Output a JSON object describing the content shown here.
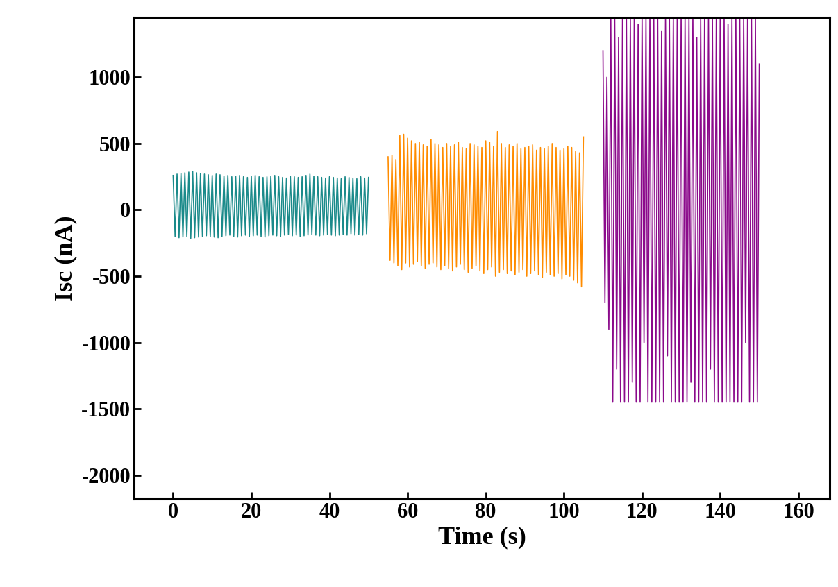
{
  "chart_data": {
    "type": "line",
    "xlabel": "Time (s)",
    "ylabel": "Isc (nA)",
    "xlim": [
      -10,
      168
    ],
    "ylim": [
      -2180,
      1450
    ],
    "xticks": [
      0,
      20,
      40,
      60,
      80,
      100,
      120,
      140,
      160
    ],
    "yticks": [
      -2000,
      -1500,
      -1000,
      -500,
      0,
      500,
      1000
    ],
    "series": [
      {
        "color": "#1a8a8a",
        "x": [
          0,
          0.5,
          1,
          1.5,
          2,
          2.5,
          3,
          3.5,
          4,
          4.5,
          5,
          5.5,
          6,
          6.5,
          7,
          7.5,
          8,
          8.5,
          9,
          9.5,
          10,
          10.5,
          11,
          11.5,
          12,
          12.5,
          13,
          13.5,
          14,
          14.5,
          15,
          15.5,
          16,
          16.5,
          17,
          17.5,
          18,
          18.5,
          19,
          19.5,
          20,
          20.5,
          21,
          21.5,
          22,
          22.5,
          23,
          23.5,
          24,
          24.5,
          25,
          25.5,
          26,
          26.5,
          27,
          27.5,
          28,
          28.5,
          29,
          29.5,
          30,
          30.5,
          31,
          31.5,
          32,
          32.5,
          33,
          33.5,
          34,
          34.5,
          35,
          35.5,
          36,
          36.5,
          37,
          37.5,
          38,
          38.5,
          39,
          39.5,
          40,
          40.5,
          41,
          41.5,
          42,
          42.5,
          43,
          43.5,
          44,
          44.5,
          45,
          45.5,
          46,
          46.5,
          47,
          47.5,
          48,
          48.5,
          49,
          49.5,
          50
        ],
        "values": [
          260,
          -200,
          270,
          -210,
          275,
          -205,
          280,
          -200,
          285,
          -215,
          290,
          -210,
          280,
          -205,
          275,
          -200,
          270,
          -195,
          265,
          -200,
          260,
          -205,
          270,
          -210,
          265,
          -200,
          255,
          -195,
          260,
          -190,
          250,
          -200,
          255,
          -205,
          260,
          -195,
          250,
          -190,
          245,
          -200,
          255,
          -195,
          260,
          -190,
          250,
          -200,
          245,
          -205,
          250,
          -195,
          255,
          -190,
          260,
          -195,
          250,
          -200,
          245,
          -190,
          240,
          -185,
          255,
          -195,
          250,
          -190,
          245,
          -200,
          250,
          -195,
          260,
          -190,
          270,
          -185,
          255,
          -190,
          250,
          -195,
          245,
          -190,
          240,
          -185,
          250,
          -190,
          245,
          -195,
          240,
          -190,
          235,
          -185,
          250,
          -190,
          245,
          -180,
          240,
          -190,
          235,
          -185,
          250,
          -190,
          240,
          -180,
          245
        ]
      },
      {
        "color": "#ff8c00",
        "x": [
          55,
          55.5,
          56,
          56.5,
          57,
          57.5,
          58,
          58.5,
          59,
          59.5,
          60,
          60.5,
          61,
          61.5,
          62,
          62.5,
          63,
          63.5,
          64,
          64.5,
          65,
          65.5,
          66,
          66.5,
          67,
          67.5,
          68,
          68.5,
          69,
          69.5,
          70,
          70.5,
          71,
          71.5,
          72,
          72.5,
          73,
          73.5,
          74,
          74.5,
          75,
          75.5,
          76,
          76.5,
          77,
          77.5,
          78,
          78.5,
          79,
          79.5,
          80,
          80.5,
          81,
          81.5,
          82,
          82.5,
          83,
          83.5,
          84,
          84.5,
          85,
          85.5,
          86,
          86.5,
          87,
          87.5,
          88,
          88.5,
          89,
          89.5,
          90,
          90.5,
          91,
          91.5,
          92,
          92.5,
          93,
          93.5,
          94,
          94.5,
          95,
          95.5,
          96,
          96.5,
          97,
          97.5,
          98,
          98.5,
          99,
          99.5,
          100,
          100.5,
          101,
          101.5,
          102,
          102.5,
          103,
          103.5,
          104,
          104.5,
          105
        ],
        "values": [
          400,
          -380,
          410,
          -400,
          380,
          -420,
          560,
          -450,
          570,
          -400,
          540,
          -430,
          520,
          -410,
          500,
          -390,
          510,
          -420,
          490,
          -440,
          480,
          -410,
          530,
          -400,
          500,
          -430,
          490,
          -450,
          470,
          -420,
          500,
          -440,
          480,
          -460,
          490,
          -430,
          510,
          -410,
          470,
          -450,
          460,
          -470,
          500,
          -440,
          490,
          -420,
          480,
          -460,
          470,
          -480,
          520,
          -450,
          510,
          -430,
          480,
          -500,
          590,
          -470,
          500,
          -450,
          470,
          -480,
          490,
          -460,
          480,
          -490,
          500,
          -470,
          460,
          -450,
          470,
          -500,
          480,
          -480,
          490,
          -460,
          450,
          -490,
          470,
          -510,
          460,
          -470,
          480,
          -490,
          500,
          -500,
          470,
          -480,
          450,
          -520,
          460,
          -490,
          480,
          -500,
          470,
          -530,
          440,
          -550,
          430,
          -580,
          550
        ]
      },
      {
        "color": "#8b0a8b",
        "x": [
          110,
          110.5,
          111,
          111.5,
          112,
          112.5,
          113,
          113.5,
          114,
          114.5,
          115,
          115.5,
          116,
          116.5,
          117,
          117.5,
          118,
          118.5,
          119,
          119.5,
          120,
          120.5,
          121,
          121.5,
          122,
          122.5,
          123,
          123.5,
          124,
          124.5,
          125,
          125.5,
          126,
          126.5,
          127,
          127.5,
          128,
          128.5,
          129,
          129.5,
          130,
          130.5,
          131,
          131.5,
          132,
          132.5,
          133,
          133.5,
          134,
          134.5,
          135,
          135.5,
          136,
          136.5,
          137,
          137.5,
          138,
          138.5,
          139,
          139.5,
          140,
          140.5,
          141,
          141.5,
          142,
          142.5,
          143,
          143.5,
          144,
          144.5,
          145,
          145.5,
          146,
          146.5,
          147,
          147.5,
          148,
          148.5,
          149,
          149.5,
          150
        ],
        "values": [
          1200,
          -700,
          1000,
          -900,
          1450,
          -1450,
          1450,
          -1200,
          1300,
          -1450,
          1450,
          -1450,
          1450,
          -1450,
          1450,
          -1300,
          1450,
          -1450,
          1400,
          -1450,
          1450,
          -1000,
          1450,
          -1450,
          1450,
          -1450,
          1450,
          -1450,
          1450,
          -1450,
          1350,
          -1450,
          1450,
          -1100,
          1450,
          -1450,
          1450,
          -1450,
          1450,
          -1450,
          1450,
          -1450,
          1450,
          -1450,
          1450,
          -1300,
          1450,
          -1450,
          1300,
          -1450,
          1450,
          -1450,
          1450,
          -1450,
          1450,
          -1200,
          1450,
          -1450,
          1450,
          -1450,
          1450,
          -1450,
          1450,
          -1450,
          1400,
          -1450,
          1450,
          -1450,
          1450,
          -1450,
          1450,
          -1450,
          1450,
          -1000,
          1450,
          -1450,
          1450,
          -1450,
          1450,
          -1450,
          1100
        ]
      }
    ]
  }
}
